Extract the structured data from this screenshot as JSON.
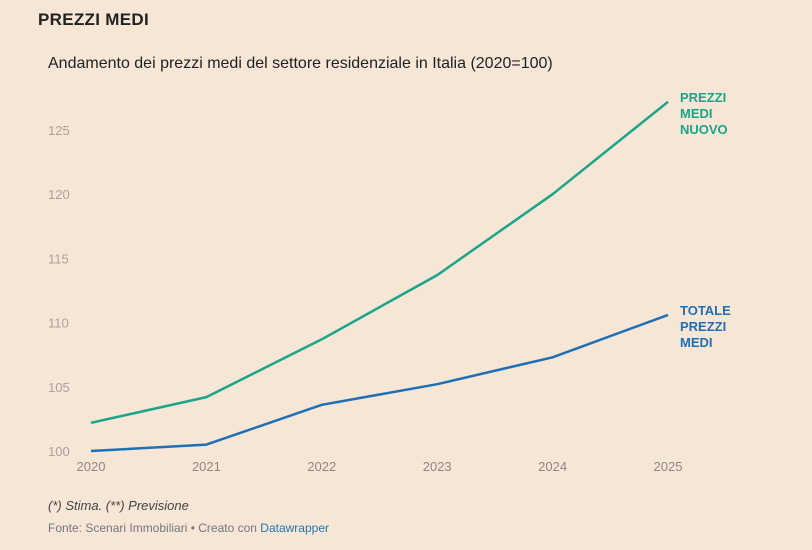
{
  "header": {
    "title": "PREZZI MEDI"
  },
  "chart_data": {
    "type": "line",
    "title": "Andamento dei prezzi medi del settore residenziale in Italia (2020=100)",
    "x": [
      "2020",
      "2021",
      "2022",
      "2023",
      "2024",
      "2025"
    ],
    "y_ticks": [
      "100",
      "105",
      "110",
      "115",
      "120",
      "125"
    ],
    "ylim": [
      100,
      128
    ],
    "grid": false,
    "series": [
      {
        "name": "PREZZI MEDI NUOVO",
        "label_lines": [
          "PREZZI",
          "MEDI",
          "NUOVO"
        ],
        "color": "#1aa58a",
        "values": [
          102.2,
          104.2,
          108.7,
          113.7,
          120.0,
          127.2
        ]
      },
      {
        "name": "TOTALE PREZZI MEDI",
        "label_lines": [
          "TOTALE",
          "PREZZI",
          "MEDI"
        ],
        "color": "#1f6fb5",
        "values": [
          100.0,
          100.5,
          103.6,
          105.2,
          107.3,
          110.6
        ]
      }
    ]
  },
  "footer": {
    "notes": "(*) Stima. (**) Previsione",
    "source_prefix": "Fonte: Scenari Immobiliari • Creato con ",
    "source_link": "Datawrapper"
  }
}
